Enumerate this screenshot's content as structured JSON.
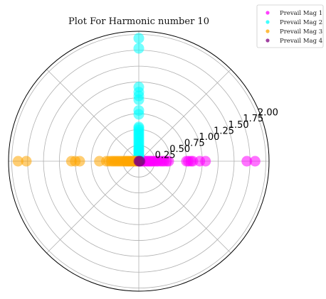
{
  "chart_data": {
    "type": "scatter",
    "projection": "polar",
    "title": "Plot For Harmonic number 10",
    "r_ticks": [
      "0.25",
      "0.50",
      "0.75",
      "1.00",
      "1.25",
      "1.50",
      "1.75",
      "2.00"
    ],
    "r_tick_values": [
      0.25,
      0.5,
      0.75,
      1.0,
      1.25,
      1.5,
      1.75,
      2.0
    ],
    "rlim": [
      0,
      2.05
    ],
    "angular_grid_deg": [
      0,
      45,
      90,
      135,
      180,
      225,
      270,
      315
    ],
    "grid": true,
    "legend_position": "top-right",
    "series": [
      {
        "name": "Prevail Mag 1",
        "color": "#ff00ff",
        "theta_deg": 0,
        "r": [
          0.02,
          0.04,
          0.06,
          0.08,
          0.1,
          0.12,
          0.14,
          0.16,
          0.18,
          0.2,
          0.22,
          0.25,
          0.28,
          0.3,
          0.34,
          0.37,
          0.4,
          0.44,
          0.47,
          0.75,
          0.78,
          0.82,
          0.85,
          0.96,
          1.05,
          1.7,
          1.83
        ]
      },
      {
        "name": "Prevail Mag 2",
        "color": "#00ffff",
        "theta_deg": 90,
        "r": [
          0.02,
          0.04,
          0.06,
          0.08,
          0.1,
          0.12,
          0.14,
          0.16,
          0.18,
          0.2,
          0.22,
          0.25,
          0.28,
          0.31,
          0.34,
          0.37,
          0.4,
          0.43,
          0.46,
          0.49,
          0.52,
          0.54,
          0.74,
          0.8,
          0.97,
          1.03,
          1.09,
          1.17,
          1.78,
          1.94
        ]
      },
      {
        "name": "Prevail Mag 3",
        "color": "#ffa500",
        "theta_deg": 180,
        "r": [
          0.02,
          0.04,
          0.06,
          0.08,
          0.1,
          0.12,
          0.14,
          0.16,
          0.18,
          0.2,
          0.22,
          0.25,
          0.28,
          0.31,
          0.34,
          0.37,
          0.4,
          0.43,
          0.47,
          0.51,
          0.62,
          0.93,
          1.0,
          1.06,
          1.77,
          1.9
        ]
      },
      {
        "name": "Prevail Mag 4",
        "color": "#800080",
        "theta_deg": 0,
        "r": [
          0.0,
          0.01,
          0.02
        ]
      }
    ]
  }
}
